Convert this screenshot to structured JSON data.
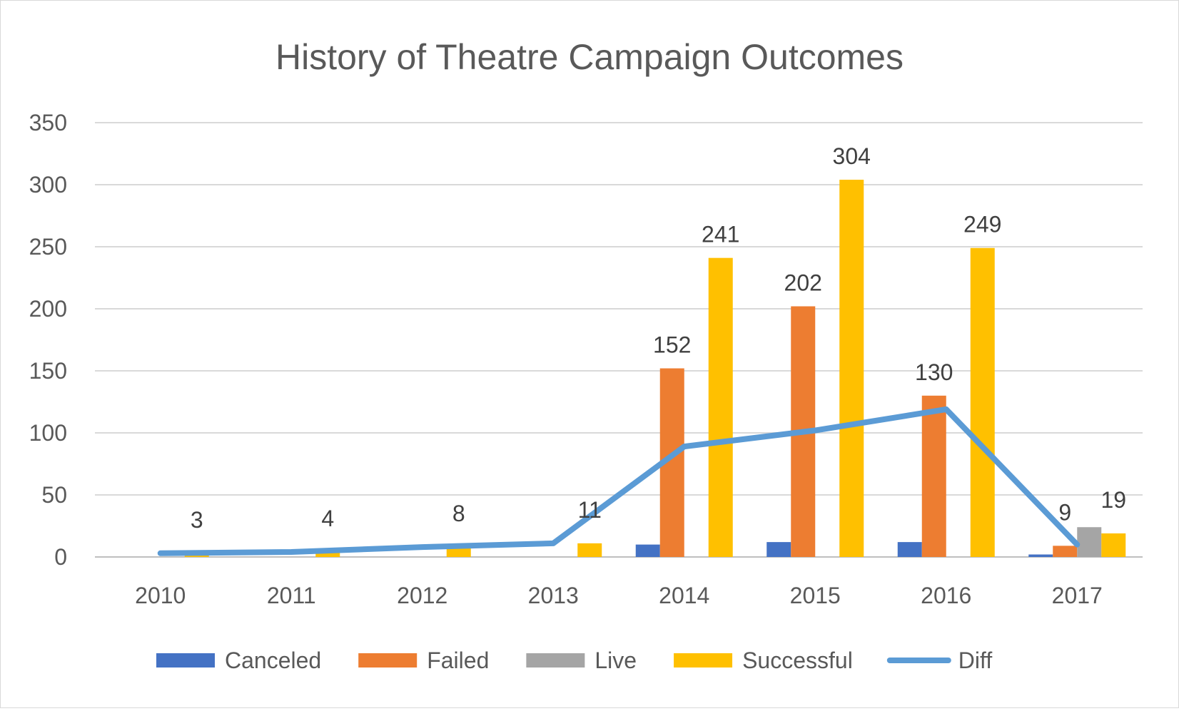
{
  "chart_data": {
    "type": "bar",
    "title": "History of Theatre Campaign Outcomes",
    "xlabel": "",
    "ylabel": "",
    "ylim": [
      0,
      350
    ],
    "yticks": [
      "0",
      "50",
      "100",
      "150",
      "200",
      "250",
      "300",
      "350"
    ],
    "categories": [
      "2010",
      "2011",
      "2012",
      "2013",
      "2014",
      "2015",
      "2016",
      "2017"
    ],
    "grid": true,
    "legend_position": "bottom",
    "series": [
      {
        "name": "Canceled",
        "kind": "bar",
        "color": "#4472c4",
        "values": [
          0,
          0,
          0,
          0,
          10,
          12,
          12,
          2
        ]
      },
      {
        "name": "Failed",
        "kind": "bar",
        "color": "#ed7d31",
        "values": [
          0,
          0,
          0,
          0,
          152,
          202,
          130,
          9
        ]
      },
      {
        "name": "Live",
        "kind": "bar",
        "color": "#a5a5a5",
        "values": [
          0,
          0,
          0,
          0,
          0,
          0,
          0,
          24
        ]
      },
      {
        "name": "Successful",
        "kind": "bar",
        "color": "#ffc000",
        "values": [
          3,
          4,
          8,
          11,
          241,
          304,
          249,
          19
        ]
      },
      {
        "name": "Diff",
        "kind": "line",
        "color": "#5b9bd5",
        "values": [
          3,
          4,
          8,
          11,
          89,
          102,
          119,
          10
        ]
      }
    ],
    "data_labels": [
      {
        "category": "2010",
        "series": "Successful",
        "text": "3"
      },
      {
        "category": "2011",
        "series": "Successful",
        "text": "4"
      },
      {
        "category": "2012",
        "series": "Successful",
        "text": "8"
      },
      {
        "category": "2013",
        "series": "Successful",
        "text": "11"
      },
      {
        "category": "2014",
        "series": "Failed",
        "text": "152"
      },
      {
        "category": "2014",
        "series": "Successful",
        "text": "241"
      },
      {
        "category": "2015",
        "series": "Failed",
        "text": "202"
      },
      {
        "category": "2015",
        "series": "Successful",
        "text": "304"
      },
      {
        "category": "2016",
        "series": "Failed",
        "text": "130"
      },
      {
        "category": "2016",
        "series": "Successful",
        "text": "249"
      },
      {
        "category": "2017",
        "series": "Failed",
        "text": "9"
      },
      {
        "category": "2017",
        "series": "Successful",
        "text": "19"
      }
    ]
  }
}
